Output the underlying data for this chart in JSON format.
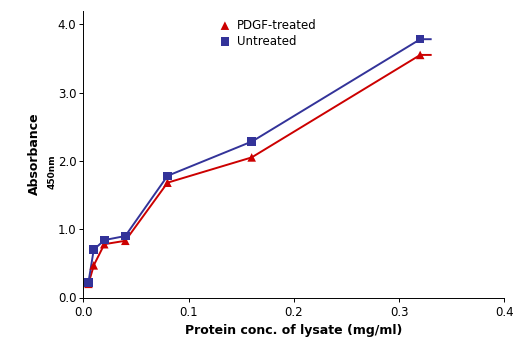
{
  "pdgf_x": [
    0.005,
    0.01,
    0.02,
    0.04,
    0.08,
    0.16,
    0.32
  ],
  "pdgf_y": [
    0.2,
    0.47,
    0.78,
    0.83,
    1.68,
    2.05,
    3.55
  ],
  "untreated_x": [
    0.005,
    0.01,
    0.02,
    0.04,
    0.08,
    0.16,
    0.32
  ],
  "untreated_y": [
    0.22,
    0.7,
    0.84,
    0.9,
    1.78,
    2.28,
    3.78
  ],
  "pdgf_color": "#cc0000",
  "untreated_color": "#333399",
  "pdgf_label": "PDGF-treated",
  "untreated_label": "Untreated",
  "xlabel": "Protein conc. of lysate (mg/ml)",
  "ylabel_main": "Absorbance",
  "ylabel_sub": "450nm",
  "xlim": [
    0.0,
    0.4
  ],
  "ylim": [
    0.0,
    4.2
  ],
  "xticks": [
    0.0,
    0.1,
    0.2,
    0.3,
    0.4
  ],
  "yticks": [
    0.0,
    1.0,
    2.0,
    3.0,
    4.0
  ],
  "background_color": "#ffffff",
  "fig_width": 5.2,
  "fig_height": 3.5,
  "dpi": 100
}
